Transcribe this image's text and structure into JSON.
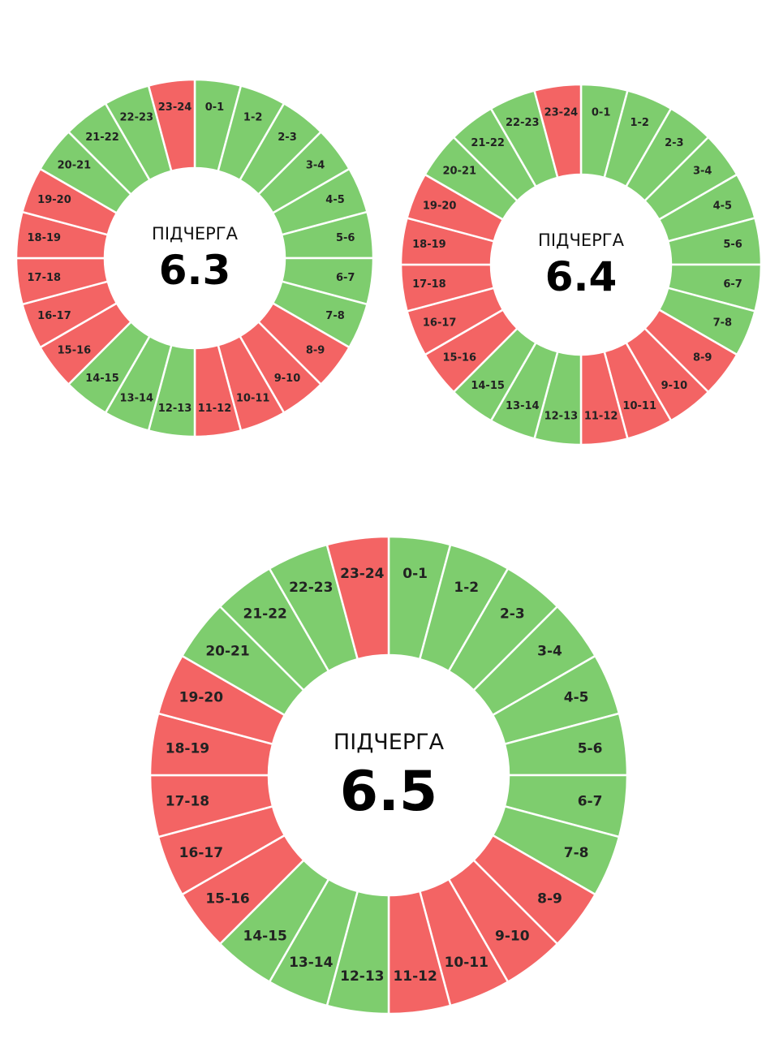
{
  "colors": {
    "on": "#7ecd6e",
    "off": "#f36464",
    "divider": "#ffffff",
    "background": "#ffffff"
  },
  "legend_values": {
    "on": 1,
    "off": 0
  },
  "chart_data": [
    {
      "type": "pie",
      "subtitle": "ПІДЧЕРГА",
      "title": "6.3",
      "categories": [
        "0-1",
        "1-2",
        "2-3",
        "3-4",
        "4-5",
        "5-6",
        "6-7",
        "7-8",
        "8-9",
        "9-10",
        "10-11",
        "11-12",
        "12-13",
        "13-14",
        "14-15",
        "15-16",
        "16-17",
        "17-18",
        "18-19",
        "19-20",
        "20-21",
        "21-22",
        "22-23",
        "23-24"
      ],
      "values": [
        1,
        1,
        1,
        1,
        1,
        1,
        1,
        1,
        0,
        0,
        0,
        0,
        1,
        1,
        1,
        0,
        0,
        0,
        0,
        0,
        1,
        1,
        1,
        0
      ]
    },
    {
      "type": "pie",
      "subtitle": "ПІДЧЕРГА",
      "title": "6.4",
      "categories": [
        "0-1",
        "1-2",
        "2-3",
        "3-4",
        "4-5",
        "5-6",
        "6-7",
        "7-8",
        "8-9",
        "9-10",
        "10-11",
        "11-12",
        "12-13",
        "13-14",
        "14-15",
        "15-16",
        "16-17",
        "17-18",
        "18-19",
        "19-20",
        "20-21",
        "21-22",
        "22-23",
        "23-24"
      ],
      "values": [
        1,
        1,
        1,
        1,
        1,
        1,
        1,
        1,
        0,
        0,
        0,
        0,
        1,
        1,
        1,
        0,
        0,
        0,
        0,
        0,
        1,
        1,
        1,
        0
      ]
    },
    {
      "type": "pie",
      "subtitle": "ПІДЧЕРГА",
      "title": "6.5",
      "categories": [
        "0-1",
        "1-2",
        "2-3",
        "3-4",
        "4-5",
        "5-6",
        "6-7",
        "7-8",
        "8-9",
        "9-10",
        "10-11",
        "11-12",
        "12-13",
        "13-14",
        "14-15",
        "15-16",
        "16-17",
        "17-18",
        "18-19",
        "19-20",
        "20-21",
        "21-22",
        "22-23",
        "23-24"
      ],
      "values": [
        1,
        1,
        1,
        1,
        1,
        1,
        1,
        1,
        0,
        0,
        0,
        0,
        1,
        1,
        1,
        0,
        0,
        0,
        0,
        0,
        1,
        1,
        1,
        0
      ]
    }
  ]
}
